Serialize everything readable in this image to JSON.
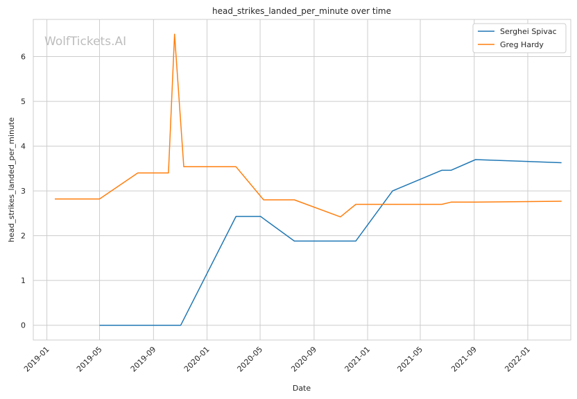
{
  "chart_data": {
    "type": "line",
    "title": "head_strikes_landed_per_minute over time",
    "xlabel": "Date",
    "ylabel": "head_strikes_landed_per_minute",
    "watermark": "WolfTickets.AI",
    "grid": true,
    "legend_position": "top-right",
    "xlim": [
      "2018-12-01",
      "2022-04-09"
    ],
    "ylim": [
      -0.33,
      6.83
    ],
    "x_ticks": [
      "2019-01",
      "2019-05",
      "2019-09",
      "2020-01",
      "2020-05",
      "2020-09",
      "2021-01",
      "2021-05",
      "2021-09",
      "2022-01"
    ],
    "y_ticks": [
      0,
      1,
      2,
      3,
      4,
      5,
      6
    ],
    "series": [
      {
        "name": "Serghei Spivac",
        "color": "#1f77b4",
        "points": [
          {
            "x": "2019-05-01",
            "y": 0.0
          },
          {
            "x": "2019-11-02",
            "y": 0.0
          },
          {
            "x": "2020-03-07",
            "y": 2.43
          },
          {
            "x": "2020-05-02",
            "y": 2.43
          },
          {
            "x": "2020-07-18",
            "y": 1.88
          },
          {
            "x": "2020-12-05",
            "y": 1.88
          },
          {
            "x": "2021-02-27",
            "y": 3.0
          },
          {
            "x": "2021-06-19",
            "y": 3.46
          },
          {
            "x": "2021-07-10",
            "y": 3.46
          },
          {
            "x": "2021-09-04",
            "y": 3.7
          },
          {
            "x": "2022-03-19",
            "y": 3.63
          }
        ]
      },
      {
        "name": "Greg Hardy",
        "color": "#ff7f0e",
        "points": [
          {
            "x": "2019-01-19",
            "y": 2.82
          },
          {
            "x": "2019-05-01",
            "y": 2.82
          },
          {
            "x": "2019-07-27",
            "y": 3.4
          },
          {
            "x": "2019-10-05",
            "y": 3.4
          },
          {
            "x": "2019-10-19",
            "y": 6.5
          },
          {
            "x": "2019-11-09",
            "y": 3.54
          },
          {
            "x": "2020-03-07",
            "y": 3.54
          },
          {
            "x": "2020-05-09",
            "y": 2.8
          },
          {
            "x": "2020-07-18",
            "y": 2.8
          },
          {
            "x": "2020-10-31",
            "y": 2.42
          },
          {
            "x": "2020-12-05",
            "y": 2.7
          },
          {
            "x": "2021-06-19",
            "y": 2.7
          },
          {
            "x": "2021-07-10",
            "y": 2.75
          },
          {
            "x": "2021-09-04",
            "y": 2.75
          },
          {
            "x": "2022-03-19",
            "y": 2.77
          }
        ]
      }
    ]
  }
}
